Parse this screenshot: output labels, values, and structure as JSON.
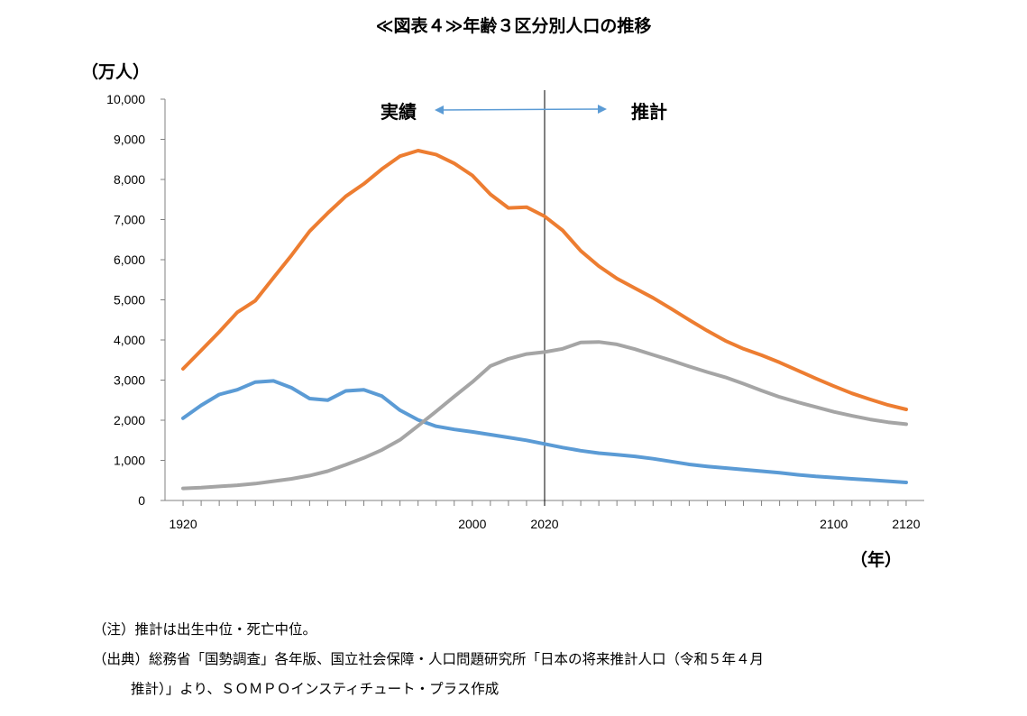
{
  "chart_data": {
    "type": "line",
    "title": "≪図表４≫年齢３区分別人口の推移",
    "y_unit": "（万人）",
    "x_unit": "（年）",
    "ylim": [
      0,
      10000
    ],
    "y_ticks": [
      "0",
      "1,000",
      "2,000",
      "3,000",
      "4,000",
      "5,000",
      "6,000",
      "7,000",
      "8,000",
      "9,000",
      "10,000"
    ],
    "xlim": [
      1915,
      2125
    ],
    "x_ticks": [
      "1920",
      "2000",
      "2020",
      "2100",
      "2120"
    ],
    "x_tick_values": [
      1920,
      2000,
      2020,
      2100,
      2120
    ],
    "divider_year": 2020,
    "annotations": {
      "left": "実績",
      "right": "推計"
    },
    "colors": {
      "series1": "#5B9BD5",
      "series2": "#ED7D31",
      "series3": "#A5A5A5",
      "axis": "#808080"
    },
    "x": [
      1920,
      1925,
      1930,
      1935,
      1940,
      1945,
      1950,
      1955,
      1960,
      1965,
      1970,
      1975,
      1980,
      1985,
      1990,
      1995,
      2000,
      2005,
      2010,
      2015,
      2020,
      2025,
      2030,
      2035,
      2040,
      2045,
      2050,
      2055,
      2060,
      2065,
      2070,
      2075,
      2080,
      2085,
      2090,
      2095,
      2100,
      2105,
      2110,
      2115,
      2120
    ],
    "series": [
      {
        "values": [
          2050,
          2370,
          2640,
          2760,
          2950,
          2980,
          2810,
          2540,
          2500,
          2730,
          2760,
          2600,
          2250,
          2010,
          1850,
          1770,
          1710,
          1640,
          1570,
          1500,
          1410,
          1320,
          1240,
          1180,
          1140,
          1100,
          1040,
          970,
          900,
          850,
          810,
          770,
          730,
          690,
          640,
          600,
          570,
          540,
          510,
          480,
          450
        ]
      },
      {
        "values": [
          3280,
          3740,
          4200,
          4690,
          4980,
          5550,
          6110,
          6710,
          7160,
          7580,
          7890,
          8260,
          8580,
          8720,
          8620,
          8400,
          8100,
          7630,
          7290,
          7310,
          7080,
          6730,
          6220,
          5840,
          5530,
          5290,
          5050,
          4780,
          4500,
          4230,
          3980,
          3780,
          3620,
          3440,
          3240,
          3040,
          2850,
          2670,
          2520,
          2380,
          2270
        ]
      },
      {
        "values": [
          300,
          320,
          350,
          380,
          420,
          480,
          540,
          620,
          730,
          890,
          1060,
          1260,
          1510,
          1860,
          2220,
          2590,
          2950,
          3350,
          3530,
          3650,
          3700,
          3780,
          3940,
          3950,
          3890,
          3770,
          3630,
          3490,
          3340,
          3200,
          3070,
          2910,
          2740,
          2580,
          2450,
          2330,
          2210,
          2110,
          2020,
          1950,
          1900
        ]
      }
    ]
  },
  "notes": [
    "（注）推計は出生中位・死亡中位。",
    "（出典）総務省「国勢調査」各年版、国立社会保障・人口問題研究所「日本の将来推計人口（令和５年４月",
    "推計）」より、ＳＯＭＰＯインスティチュート・プラス作成"
  ]
}
